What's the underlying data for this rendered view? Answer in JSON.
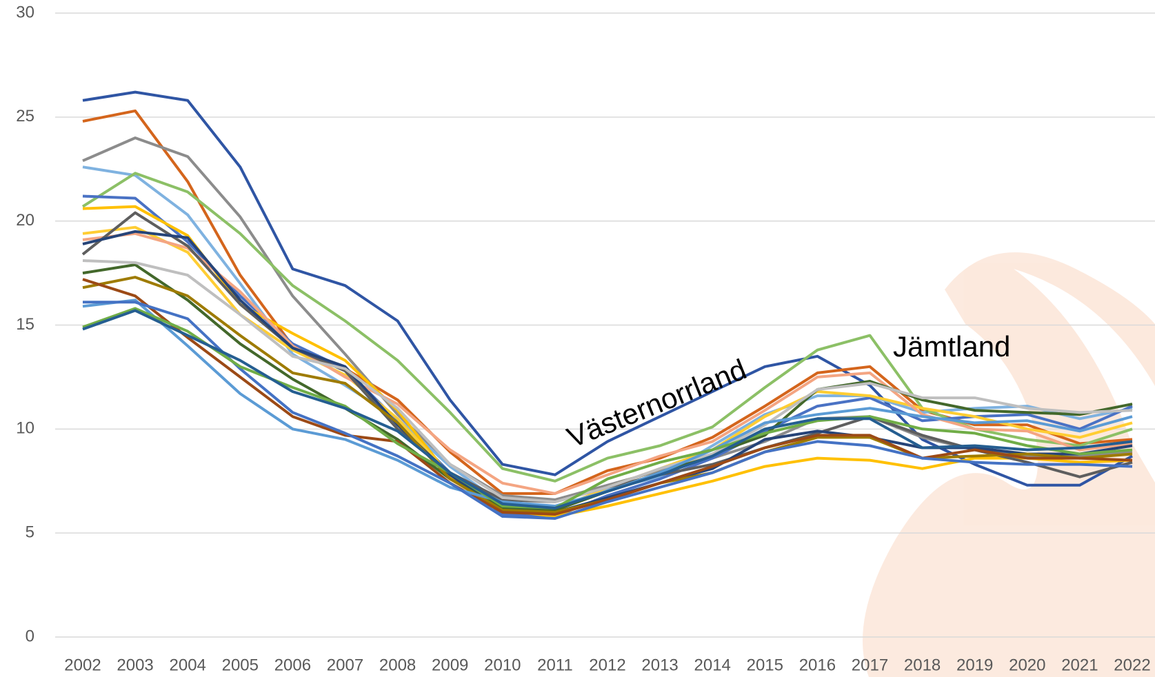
{
  "chart_data": {
    "type": "line",
    "categories": [
      "2002",
      "2003",
      "2004",
      "2005",
      "2006",
      "2007",
      "2008",
      "2009",
      "2010",
      "2011",
      "2012",
      "2013",
      "2014",
      "2015",
      "2016",
      "2017",
      "2018",
      "2019",
      "2020",
      "2021",
      "2022"
    ],
    "ylim": [
      0,
      30
    ],
    "yticks": [
      0,
      5,
      10,
      15,
      20,
      25,
      30
    ],
    "grid": true,
    "series": [
      {
        "name": "Västernorrland",
        "color": "#2f55a4",
        "values": [
          25.8,
          26.2,
          25.8,
          22.6,
          17.7,
          16.9,
          15.2,
          11.4,
          8.3,
          7.8,
          9.4,
          10.6,
          11.8,
          13.0,
          13.5,
          12.1,
          9.5,
          8.3,
          7.3,
          7.3,
          8.7
        ]
      },
      {
        "color": "#d4651c",
        "values": [
          24.8,
          25.3,
          21.9,
          17.4,
          14.0,
          12.9,
          11.4,
          8.9,
          6.9,
          6.9,
          8.0,
          8.6,
          9.6,
          11.1,
          12.7,
          13.0,
          10.9,
          10.2,
          10.2,
          9.3,
          9.5
        ]
      },
      {
        "color": "#8c8c8c",
        "values": [
          22.9,
          24.0,
          23.1,
          20.2,
          16.4,
          13.6,
          10.7,
          8.3,
          6.8,
          6.6,
          7.3,
          8.0,
          8.6,
          9.4,
          10.5,
          10.6,
          9.6,
          9.0,
          8.7,
          8.7,
          8.9
        ]
      },
      {
        "color": "#7fb2e0",
        "values": [
          22.6,
          22.2,
          20.3,
          17.0,
          13.6,
          12.1,
          10.5,
          8.2,
          6.4,
          6.2,
          7.1,
          7.7,
          9.2,
          10.7,
          11.6,
          11.6,
          10.8,
          11.0,
          11.1,
          10.5,
          11.0
        ]
      },
      {
        "name": "Jämtland",
        "color": "#8cc066",
        "values": [
          20.7,
          22.3,
          21.4,
          19.4,
          16.9,
          15.2,
          13.3,
          10.8,
          8.1,
          7.5,
          8.6,
          9.2,
          10.1,
          12.0,
          13.8,
          14.5,
          11.0,
          10.0,
          9.5,
          9.2,
          10.0
        ]
      },
      {
        "color": "#4a72c4",
        "values": [
          21.2,
          21.1,
          19.0,
          16.4,
          14.1,
          12.9,
          10.4,
          7.9,
          5.9,
          5.8,
          6.8,
          7.6,
          8.6,
          9.9,
          11.1,
          11.5,
          10.4,
          10.6,
          10.7,
          10.0,
          11.1
        ]
      },
      {
        "color": "#ffc000",
        "values": [
          20.6,
          20.7,
          19.3,
          16.0,
          14.6,
          13.3,
          10.9,
          7.7,
          6.1,
          5.8,
          6.3,
          6.9,
          7.5,
          8.2,
          8.6,
          8.5,
          8.1,
          8.6,
          8.6,
          8.4,
          8.5
        ]
      },
      {
        "color": "#ffcd33",
        "values": [
          19.4,
          19.7,
          18.5,
          15.5,
          13.8,
          12.6,
          10.5,
          7.8,
          6.3,
          6.1,
          7.2,
          8.1,
          9.0,
          10.6,
          11.8,
          11.6,
          11.0,
          10.6,
          10.0,
          9.6,
          10.3
        ]
      },
      {
        "color": "#f4a582",
        "values": [
          19.1,
          19.4,
          18.7,
          16.6,
          14.0,
          12.5,
          11.2,
          9.0,
          7.4,
          6.9,
          7.8,
          8.7,
          9.4,
          10.9,
          12.5,
          12.7,
          10.7,
          10.0,
          9.9,
          9.0,
          9.3
        ]
      },
      {
        "color": "#5e5e5e",
        "values": [
          18.4,
          20.4,
          18.8,
          16.0,
          13.9,
          12.8,
          10.0,
          7.9,
          6.6,
          6.5,
          7.2,
          7.8,
          8.3,
          9.1,
          9.8,
          10.6,
          9.7,
          9.0,
          8.4,
          7.7,
          8.4
        ]
      },
      {
        "color": "#264478",
        "values": [
          18.9,
          19.5,
          19.2,
          16.2,
          13.9,
          13.0,
          10.2,
          7.8,
          6.1,
          6.0,
          6.7,
          7.4,
          8.1,
          9.5,
          9.9,
          9.6,
          9.1,
          9.1,
          8.8,
          8.8,
          9.2
        ]
      },
      {
        "color": "#43682b",
        "values": [
          17.5,
          17.9,
          16.2,
          14.1,
          12.4,
          11.0,
          9.5,
          7.6,
          6.2,
          6.1,
          7.0,
          7.9,
          8.8,
          9.7,
          11.9,
          12.3,
          11.4,
          10.9,
          10.8,
          10.7,
          11.2
        ]
      },
      {
        "color": "#9e7b00",
        "values": [
          16.8,
          17.3,
          16.4,
          14.5,
          12.7,
          12.2,
          10.3,
          7.6,
          6.1,
          6.0,
          6.6,
          7.4,
          7.9,
          8.9,
          9.6,
          9.6,
          8.6,
          8.7,
          8.8,
          8.6,
          8.8
        ]
      },
      {
        "color": "#bfbfbf",
        "values": [
          18.1,
          18.0,
          17.4,
          15.5,
          13.5,
          12.9,
          11.0,
          8.3,
          6.7,
          6.5,
          7.2,
          8.1,
          8.8,
          10.2,
          11.9,
          12.2,
          11.5,
          11.5,
          11.0,
          10.8,
          10.9
        ]
      },
      {
        "color": "#9c4a16",
        "values": [
          17.2,
          16.4,
          14.4,
          12.5,
          10.6,
          9.7,
          9.4,
          7.4,
          6.0,
          5.9,
          6.6,
          7.4,
          8.2,
          9.1,
          9.7,
          9.7,
          8.6,
          9.0,
          8.6,
          8.6,
          8.5
        ]
      },
      {
        "color": "#5b9bd5",
        "values": [
          15.9,
          16.2,
          14.0,
          11.7,
          10.0,
          9.5,
          8.5,
          7.2,
          6.5,
          6.3,
          7.0,
          7.9,
          9.0,
          10.3,
          10.7,
          11.0,
          10.6,
          10.3,
          10.4,
          9.9,
          10.6
        ]
      },
      {
        "color": "#4472c4",
        "values": [
          16.1,
          16.1,
          15.3,
          12.9,
          10.8,
          9.8,
          8.7,
          7.4,
          5.8,
          5.7,
          6.5,
          7.2,
          7.9,
          8.9,
          9.4,
          9.2,
          8.6,
          8.4,
          8.3,
          8.3,
          8.2
        ]
      },
      {
        "color": "#70ad47",
        "values": [
          14.9,
          15.8,
          14.7,
          13.0,
          12.0,
          11.1,
          9.3,
          7.9,
          6.3,
          6.2,
          7.6,
          8.4,
          9.0,
          9.8,
          10.4,
          10.6,
          10.0,
          9.8,
          9.2,
          8.8,
          9.0
        ]
      },
      {
        "color": "#255e91",
        "values": [
          14.8,
          15.7,
          14.5,
          13.3,
          11.8,
          11.0,
          9.9,
          7.9,
          6.4,
          6.2,
          7.0,
          7.8,
          8.7,
          10.0,
          10.5,
          10.5,
          9.1,
          9.2,
          9.0,
          9.1,
          9.4
        ]
      }
    ]
  }
}
